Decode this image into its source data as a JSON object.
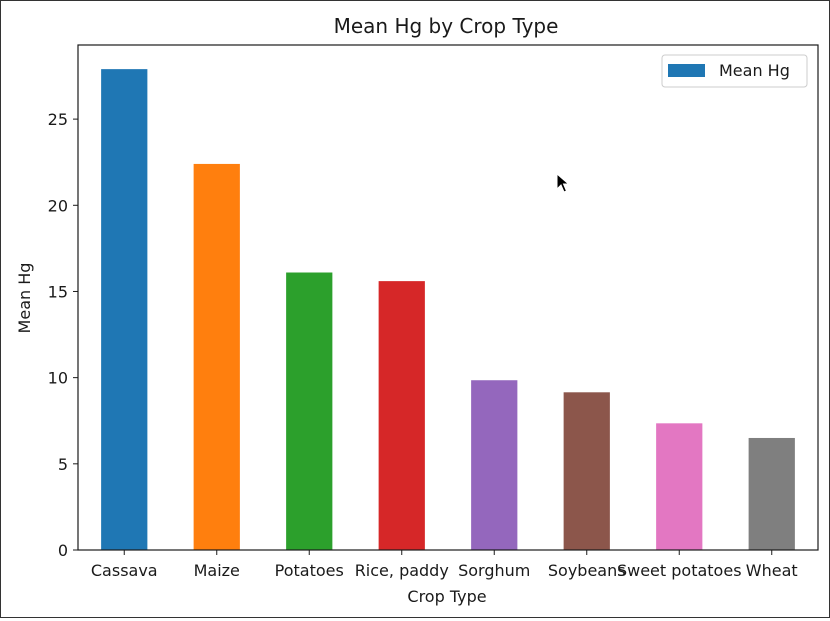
{
  "chart_data": {
    "type": "bar",
    "title": "Mean Hg by Crop Type",
    "xlabel": "Crop Type",
    "ylabel": "Mean Hg",
    "categories": [
      "Cassava",
      "Maize",
      "Potatoes",
      "Rice, paddy",
      "Sorghum",
      "Soybeans",
      "Sweet potatoes",
      "Wheat"
    ],
    "series": [
      {
        "name": "Mean Hg",
        "values": [
          27.9,
          22.4,
          16.1,
          15.6,
          9.85,
          9.15,
          7.35,
          6.5
        ]
      }
    ],
    "bar_colors": [
      "#1f77b4",
      "#ff7f0e",
      "#2ca02c",
      "#d62728",
      "#9467bd",
      "#8c564b",
      "#e377c2",
      "#7f7f7f"
    ],
    "legend_color": "#1f77b4",
    "yticks": [
      0,
      5,
      10,
      15,
      20,
      25
    ],
    "ylim": [
      0,
      29.3
    ],
    "grid": false,
    "legend_position": "top-right"
  }
}
